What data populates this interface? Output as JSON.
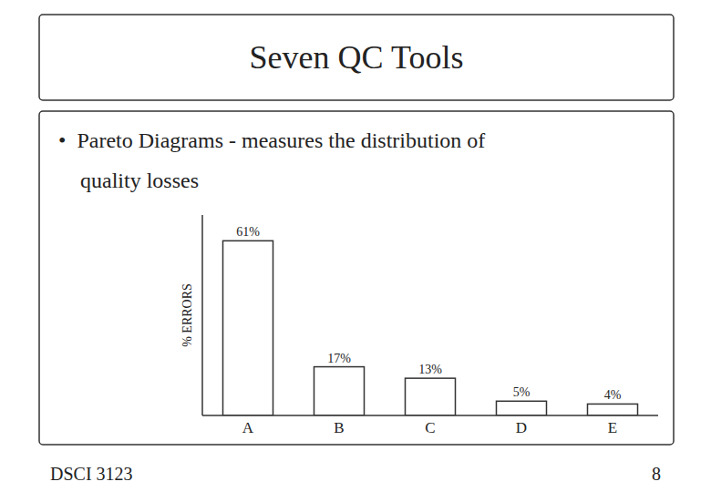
{
  "chart_data": {
    "type": "bar",
    "title": "Seven QC Tools",
    "annotations": [
      "•  Pareto Diagrams - measures the distribution of",
      "    quality losses",
      "DSCI 3123",
      "8"
    ],
    "categories": [
      "A",
      "B",
      "C",
      "D",
      "E"
    ],
    "values": [
      61,
      17,
      13,
      5,
      4
    ],
    "value_labels": [
      "61%",
      "17%",
      "13%",
      "5%",
      "4%"
    ],
    "data_labels": true,
    "ylabel": "% ERRORS",
    "ylim": [
      0,
      70
    ],
    "yticks": [],
    "tick_labels": "x",
    "grid": false,
    "color": "#ffffff"
  }
}
